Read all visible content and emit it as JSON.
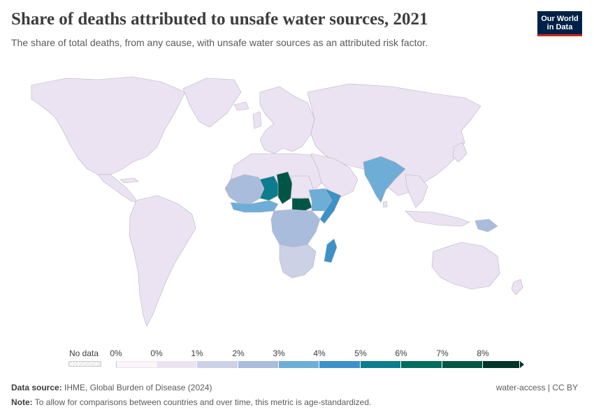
{
  "header": {
    "title": "Share of deaths attributed to unsafe water sources, 2021",
    "subtitle": "The share of total deaths, from any cause, with unsafe water sources as an attributed risk factor."
  },
  "logo": {
    "line1": "Our World",
    "line2": "in Data",
    "bg_color": "#002147",
    "accent_color": "#ce261e"
  },
  "legend": {
    "no_data_label": "No data",
    "ticks": [
      "0%",
      "0%",
      "1%",
      "2%",
      "3%",
      "4%",
      "5%",
      "6%",
      "7%",
      "8%"
    ],
    "colors": [
      "#fdf5fb",
      "#ebe3f1",
      "#cdd1e6",
      "#a9bcdc",
      "#6eaed6",
      "#3b92c6",
      "#0b7d8d",
      "#006e5f",
      "#005645",
      "#00352a"
    ]
  },
  "map": {
    "default_color": "#ebe3f1",
    "border_color": "#b8b2c4",
    "regions": [
      {
        "name": "chad",
        "color": "#005645"
      },
      {
        "name": "south-sudan",
        "color": "#005645"
      },
      {
        "name": "niger",
        "color": "#0b7d8d"
      },
      {
        "name": "somalia",
        "color": "#3b92c6"
      },
      {
        "name": "ethiopia",
        "color": "#6eaed6"
      },
      {
        "name": "india",
        "color": "#6eaed6"
      },
      {
        "name": "madagascar",
        "color": "#3b92c6"
      },
      {
        "name": "mali",
        "color": "#a9bcdc"
      },
      {
        "name": "central-africa",
        "color": "#a9bcdc"
      },
      {
        "name": "southern-africa",
        "color": "#cdd1e6"
      },
      {
        "name": "papua-new-guinea",
        "color": "#a9bcdc"
      }
    ]
  },
  "footer": {
    "source_label": "Data source:",
    "source_text": "IHME, Global Burden of Disease (2024)",
    "note_label": "Note:",
    "note_text": "To allow for comparisons between countries and over time, this metric is age-standardized.",
    "right_text": "water-access | CC BY"
  }
}
